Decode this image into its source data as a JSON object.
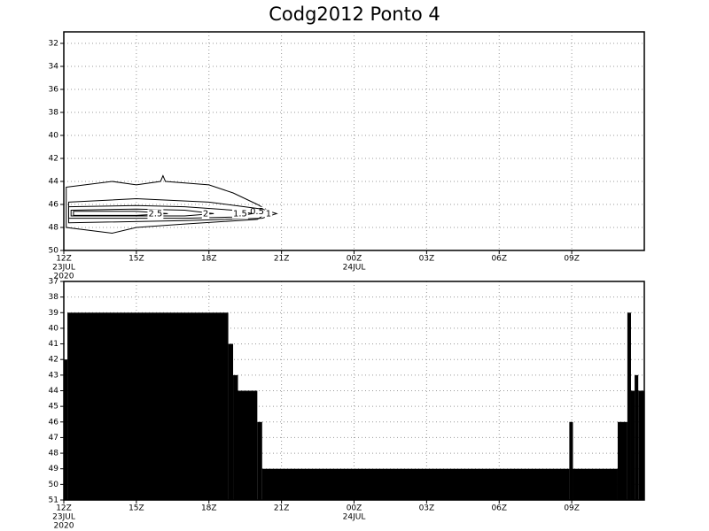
{
  "chart_data": [
    {
      "type": "contour",
      "title": "Codg2012 Ponto 4",
      "xlim": [
        0,
        24
      ],
      "ylim": [
        50,
        31
      ],
      "xticks": [
        {
          "value": 0,
          "label": "12Z"
        },
        {
          "value": 3,
          "label": "15Z"
        },
        {
          "value": 6,
          "label": "18Z"
        },
        {
          "value": 9,
          "label": "21Z"
        },
        {
          "value": 12,
          "label": "00Z"
        },
        {
          "value": 15,
          "label": "03Z"
        },
        {
          "value": 18,
          "label": "06Z"
        },
        {
          "value": 21,
          "label": "09Z"
        }
      ],
      "xdates": [
        {
          "value": 0,
          "label": "23JUL"
        },
        {
          "value": 12,
          "label": "24JUL"
        }
      ],
      "xyears": [
        {
          "value": 0,
          "label": "2020"
        }
      ],
      "yticks": [
        32,
        34,
        36,
        38,
        40,
        42,
        44,
        46,
        48,
        50
      ],
      "grid": true,
      "color": "#000000",
      "contours": [
        {
          "level": 0.5,
          "points": [
            [
              0.1,
              44.5
            ],
            [
              2,
              44.0
            ],
            [
              3,
              44.3
            ],
            [
              4,
              44.0
            ],
            [
              4.1,
              43.5
            ],
            [
              4.2,
              44.0
            ],
            [
              6,
              44.3
            ],
            [
              7,
              45.0
            ],
            [
              8.0,
              46.0
            ],
            [
              8.5,
              46.6
            ],
            [
              8,
              47.3
            ],
            [
              5,
              47.7
            ],
            [
              3,
              48.0
            ],
            [
              2,
              48.5
            ],
            [
              0.1,
              48.0
            ]
          ]
        },
        {
          "level": 1,
          "points": [
            [
              0.2,
              45.8
            ],
            [
              3,
              45.5
            ],
            [
              6,
              45.8
            ],
            [
              8.2,
              46.4
            ],
            [
              8.8,
              46.8
            ],
            [
              8.2,
              47.2
            ],
            [
              5,
              47.4
            ],
            [
              0.2,
              47.6
            ]
          ]
        },
        {
          "level": 1.5,
          "points": [
            [
              0.2,
              46.2
            ],
            [
              3,
              46.1
            ],
            [
              5,
              46.2
            ],
            [
              7,
              46.5
            ],
            [
              7.8,
              46.8
            ],
            [
              7,
              47.1
            ],
            [
              5,
              47.2
            ],
            [
              0.2,
              47.2
            ]
          ]
        },
        {
          "level": 2,
          "points": [
            [
              0.3,
              46.5
            ],
            [
              3,
              46.4
            ],
            [
              5,
              46.5
            ],
            [
              6.2,
              46.8
            ],
            [
              5,
              47.0
            ],
            [
              0.3,
              47.0
            ]
          ]
        },
        {
          "level": 2.5,
          "points": [
            [
              0.4,
              46.6
            ],
            [
              3,
              46.6
            ],
            [
              4.3,
              46.8
            ],
            [
              3,
              46.95
            ],
            [
              0.4,
              46.95
            ]
          ]
        }
      ]
    },
    {
      "type": "histogram",
      "xlim": [
        0,
        24
      ],
      "ylim": [
        51,
        37
      ],
      "xticks": [
        {
          "value": 0,
          "label": "12Z"
        },
        {
          "value": 3,
          "label": "15Z"
        },
        {
          "value": 6,
          "label": "18Z"
        },
        {
          "value": 9,
          "label": "21Z"
        },
        {
          "value": 12,
          "label": "00Z"
        },
        {
          "value": 15,
          "label": "03Z"
        },
        {
          "value": 18,
          "label": "06Z"
        },
        {
          "value": 21,
          "label": "09Z"
        }
      ],
      "xdates": [
        {
          "value": 0,
          "label": "23JUL"
        },
        {
          "value": 12,
          "label": "24JUL"
        }
      ],
      "xyears": [
        {
          "value": 0,
          "label": "2020"
        }
      ],
      "yticks": [
        37,
        38,
        39,
        40,
        41,
        42,
        43,
        44,
        45,
        46,
        47,
        48,
        49,
        50,
        51
      ],
      "grid": true,
      "color": "#000000",
      "bins": [
        0,
        0.15,
        6.8,
        7.0,
        7.2,
        8.0,
        8.2,
        20.9,
        21.05,
        22.9,
        23.3,
        23.45,
        23.6,
        23.75,
        24
      ],
      "values": [
        42,
        39,
        41,
        43,
        44,
        46,
        49,
        46,
        49,
        46,
        39,
        44,
        43,
        44
      ]
    }
  ]
}
